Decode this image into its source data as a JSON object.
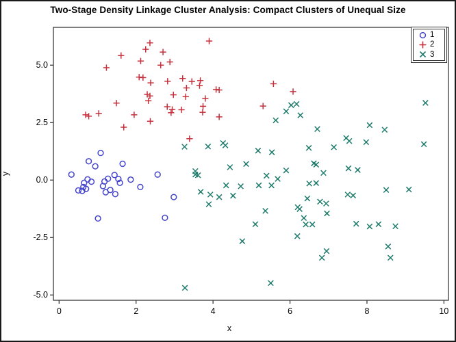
{
  "figure": {
    "title": "Two-Stage Density Linkage Cluster Analysis: Compact Clusters of Unequal Size",
    "xlabel": "x",
    "ylabel": "y"
  },
  "legend": {
    "position": "top-right",
    "entries": [
      {
        "label": "1",
        "marker": "circle",
        "color": "#4444CC"
      },
      {
        "label": "2",
        "marker": "plus",
        "color": "#C5303C"
      },
      {
        "label": "3",
        "marker": "x",
        "color": "#1E7B6C"
      }
    ]
  },
  "chart_data": {
    "type": "scatter",
    "title": "Two-Stage Density Linkage Cluster Analysis: Compact Clusters of Unequal Size",
    "xlabel": "x",
    "ylabel": "y",
    "xlim": [
      -0.148,
      10.118
    ],
    "ylim": [
      -5.23,
      6.645
    ],
    "x_ticks": [
      0,
      2,
      4,
      6,
      8,
      10
    ],
    "x_tick_labels": [
      "0",
      "2",
      "4",
      "6",
      "8",
      "10"
    ],
    "y_ticks": [
      -5.0,
      -2.5,
      0.0,
      2.5,
      5.0
    ],
    "y_tick_labels": [
      "-5.0",
      "-2.5",
      "0.0",
      "2.5",
      "5.0"
    ],
    "grid": false,
    "legend_position": "top-right",
    "frame_color": "#3a3a3a",
    "series": [
      {
        "name": "1",
        "marker": "circle",
        "color": "#4444CC",
        "points": [
          [
            0.32,
            0.24
          ],
          [
            1.08,
            1.18
          ],
          [
            0.77,
            0.82
          ],
          [
            0.94,
            0.6
          ],
          [
            1.65,
            0.71
          ],
          [
            2.56,
            0.24
          ],
          [
            0.74,
            0.03
          ],
          [
            0.65,
            -0.12
          ],
          [
            0.84,
            -0.07
          ],
          [
            0.63,
            -0.3
          ],
          [
            0.7,
            -0.38
          ],
          [
            0.5,
            -0.45
          ],
          [
            0.6,
            -0.47
          ],
          [
            1.18,
            -0.06
          ],
          [
            1.27,
            0.06
          ],
          [
            1.14,
            -0.26
          ],
          [
            1.44,
            0.22
          ],
          [
            1.54,
            0.05
          ],
          [
            1.58,
            -0.12
          ],
          [
            1.21,
            -0.53
          ],
          [
            1.33,
            -0.43
          ],
          [
            1.46,
            -0.61
          ],
          [
            1.86,
            0.02
          ],
          [
            2.11,
            -0.3
          ],
          [
            2.98,
            -0.74
          ],
          [
            1.01,
            -1.67
          ],
          [
            2.75,
            -1.64
          ]
        ]
      },
      {
        "name": "2",
        "marker": "plus",
        "color": "#C5303C",
        "points": [
          [
            2.36,
            5.97
          ],
          [
            2.25,
            5.69
          ],
          [
            2.7,
            5.57
          ],
          [
            1.61,
            5.42
          ],
          [
            2.12,
            5.18
          ],
          [
            2.88,
            5.14
          ],
          [
            2.64,
            5.0
          ],
          [
            1.23,
            4.89
          ],
          [
            3.9,
            6.05
          ],
          [
            2.08,
            4.48
          ],
          [
            2.18,
            4.46
          ],
          [
            2.38,
            4.23
          ],
          [
            2.82,
            4.3
          ],
          [
            3.21,
            4.42
          ],
          [
            3.45,
            4.29
          ],
          [
            3.67,
            4.33
          ],
          [
            3.65,
            4.11
          ],
          [
            3.31,
            4.01
          ],
          [
            4.08,
            3.94
          ],
          [
            4.16,
            3.92
          ],
          [
            2.29,
            3.73
          ],
          [
            2.36,
            3.66
          ],
          [
            2.32,
            3.45
          ],
          [
            2.97,
            3.71
          ],
          [
            3.29,
            3.63
          ],
          [
            3.8,
            3.55
          ],
          [
            5.57,
            4.19
          ],
          [
            6.08,
            3.85
          ],
          [
            2.81,
            3.19
          ],
          [
            2.94,
            3.07
          ],
          [
            3.18,
            3.06
          ],
          [
            2.91,
            2.93
          ],
          [
            3.74,
            3.21
          ],
          [
            3.73,
            2.95
          ],
          [
            4.16,
            2.75
          ],
          [
            5.3,
            3.22
          ],
          [
            1.49,
            3.35
          ],
          [
            0.69,
            2.84
          ],
          [
            0.77,
            2.78
          ],
          [
            1.03,
            2.9
          ],
          [
            1.95,
            2.84
          ],
          [
            2.37,
            2.56
          ],
          [
            1.68,
            2.3
          ],
          [
            3.39,
            1.8
          ]
        ]
      },
      {
        "name": "3",
        "marker": "x",
        "color": "#1E7B6C",
        "points": [
          [
            5.63,
            2.6
          ],
          [
            6.03,
            3.26
          ],
          [
            6.17,
            3.31
          ],
          [
            5.9,
            2.99
          ],
          [
            6.27,
            2.82
          ],
          [
            6.71,
            2.22
          ],
          [
            8.07,
            2.39
          ],
          [
            8.46,
            2.19
          ],
          [
            9.52,
            3.36
          ],
          [
            7.46,
            1.83
          ],
          [
            7.54,
            1.7
          ],
          [
            7.14,
            1.43
          ],
          [
            7.98,
            1.65
          ],
          [
            9.48,
            1.56
          ],
          [
            6.49,
            1.4
          ],
          [
            3.26,
            1.45
          ],
          [
            3.87,
            1.46
          ],
          [
            4.26,
            1.61
          ],
          [
            4.32,
            1.51
          ],
          [
            5.17,
            1.28
          ],
          [
            5.53,
            1.21
          ],
          [
            4.44,
            0.56
          ],
          [
            4.86,
            0.7
          ],
          [
            3.54,
            0.39
          ],
          [
            3.54,
            0.24
          ],
          [
            3.61,
            0.21
          ],
          [
            5.9,
            0.42
          ],
          [
            5.39,
            0.19
          ],
          [
            5.68,
            0.05
          ],
          [
            5.52,
            -0.23
          ],
          [
            5.19,
            -0.23
          ],
          [
            4.34,
            -0.23
          ],
          [
            4.72,
            -0.27
          ],
          [
            3.68,
            -0.51
          ],
          [
            3.93,
            -0.63
          ],
          [
            4.16,
            -0.74
          ],
          [
            4.52,
            -0.68
          ],
          [
            6.5,
            -0.15
          ],
          [
            6.68,
            -0.13
          ],
          [
            6.45,
            -0.8
          ],
          [
            6.78,
            -0.94
          ],
          [
            6.94,
            -1.02
          ],
          [
            6.2,
            -1.18
          ],
          [
            6.25,
            -1.26
          ],
          [
            3.89,
            -1.05
          ],
          [
            5.36,
            -1.34
          ],
          [
            5.1,
            -1.92
          ],
          [
            6.36,
            -1.65
          ],
          [
            6.41,
            -1.93
          ],
          [
            6.58,
            -1.93
          ],
          [
            6.19,
            -2.44
          ],
          [
            4.76,
            -2.66
          ],
          [
            6.62,
            0.73
          ],
          [
            6.68,
            0.67
          ],
          [
            6.87,
            0.31
          ],
          [
            7.52,
            0.51
          ],
          [
            7.76,
            0.44
          ],
          [
            8.5,
            -0.43
          ],
          [
            9.09,
            -0.41
          ],
          [
            7.5,
            -0.63
          ],
          [
            7.64,
            -0.67
          ],
          [
            6.96,
            -1.45
          ],
          [
            7.72,
            -1.9
          ],
          [
            8.07,
            -2.02
          ],
          [
            8.3,
            -1.92
          ],
          [
            8.74,
            -2.01
          ],
          [
            8.55,
            -2.89
          ],
          [
            8.61,
            -3.38
          ],
          [
            6.95,
            -3.09
          ],
          [
            6.83,
            -3.38
          ],
          [
            3.27,
            -4.69
          ],
          [
            5.5,
            -4.48
          ]
        ]
      }
    ]
  }
}
